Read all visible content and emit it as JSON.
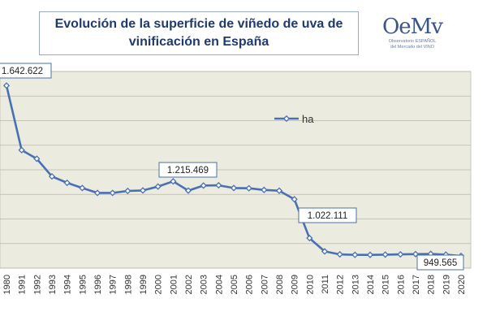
{
  "title": "Evolución de la superficie de viñedo de uva de\nvinificación en España",
  "logo": {
    "mark": "OeMv",
    "subtitle": "Observatorio ESPAÑOL\ndel Mercado del VINO"
  },
  "colors": {
    "line": "#4a6fb5",
    "plot_bg": "#ecebdf",
    "grid": "#b9b8aa",
    "title": "#1f3a6d"
  },
  "chart_data": {
    "type": "line",
    "title": "Evolución de la superficie de viñedo de uva de vinificación en España",
    "xlabel": "",
    "ylabel": "",
    "grid": true,
    "legend": "top-center",
    "series": [
      {
        "name": "ha",
        "x": [
          "1980",
          "1991",
          "1992",
          "1993",
          "1994",
          "1995",
          "1996",
          "1997",
          "1998",
          "1999",
          "2000",
          "2001",
          "2002",
          "2003",
          "2004",
          "2005",
          "2006",
          "2007",
          "2008",
          "2009",
          "2010",
          "2011",
          "2012",
          "2013",
          "2014",
          "2015",
          "2016",
          "2017",
          "2018",
          "2019",
          "2020"
        ],
        "values": [
          1642622,
          1380000,
          1345000,
          1273000,
          1247000,
          1226000,
          1206000,
          1206000,
          1214000,
          1216000,
          1232000,
          1253000,
          1215469,
          1236000,
          1237000,
          1226000,
          1225000,
          1218000,
          1215000,
          1180000,
          1022111,
          968000,
          956000,
          954000,
          954000,
          955000,
          956000,
          957000,
          958000,
          955000,
          949565
        ]
      }
    ],
    "annotations": [
      {
        "index": 0,
        "label": "1.642.622"
      },
      {
        "index": 12,
        "label": "1.215.469"
      },
      {
        "index": 20,
        "label": "1.022.111"
      },
      {
        "index": 30,
        "label": "949.565"
      }
    ]
  }
}
